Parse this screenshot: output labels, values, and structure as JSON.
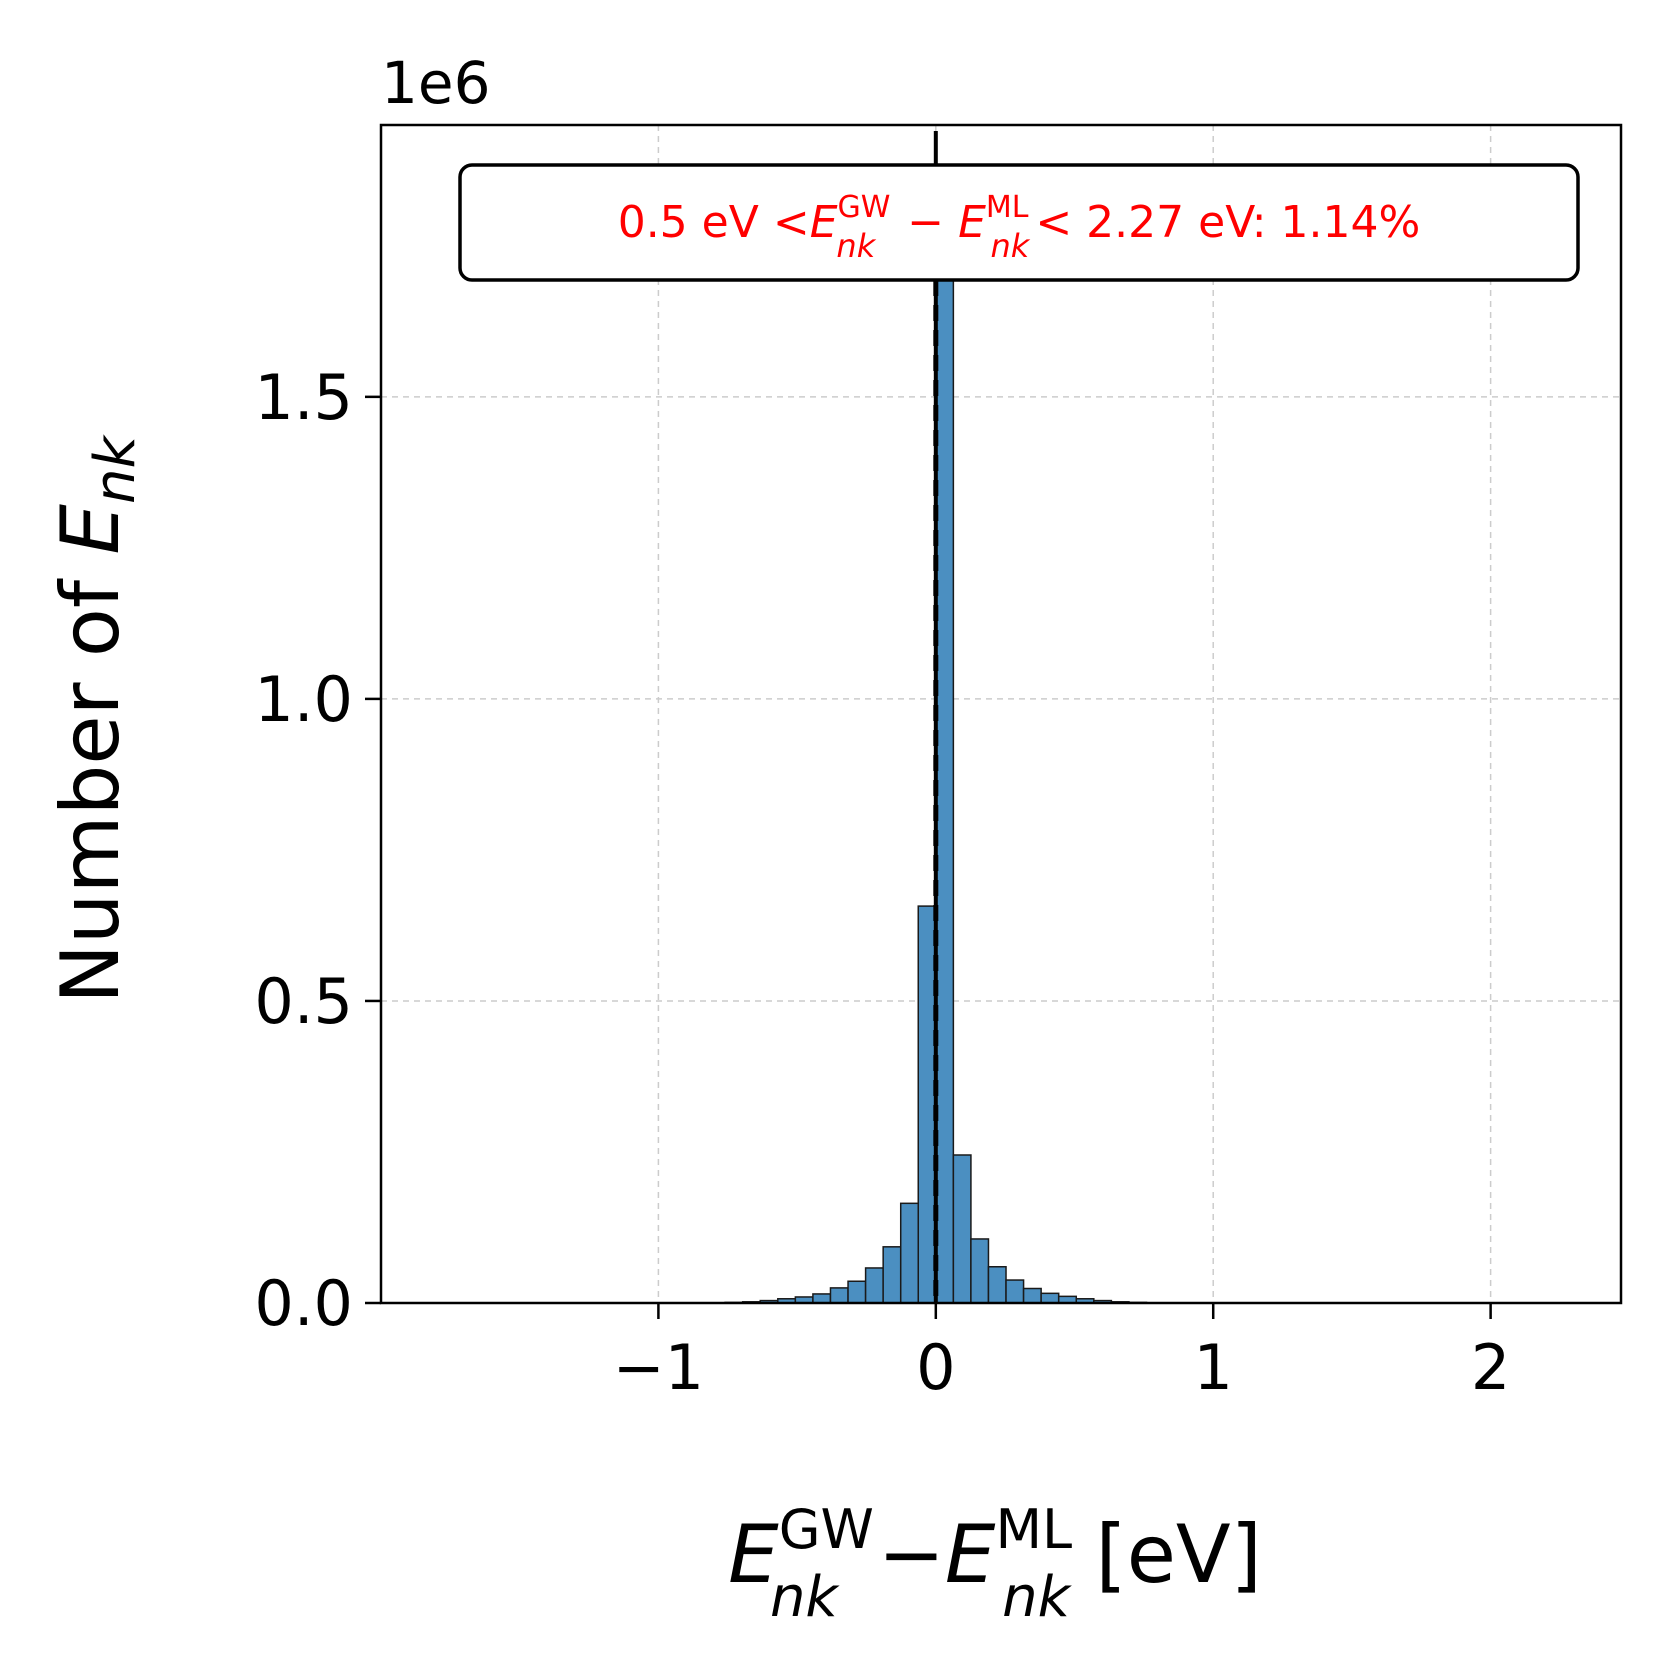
{
  "chart_data": {
    "type": "bar",
    "title": "",
    "xlabel": {
      "base": "E",
      "sub1": "nk",
      "sup1": "GW",
      "minus": "−",
      "sub2": "nk",
      "sup2": "ML",
      "unit": " [eV]"
    },
    "ylabel": {
      "text": "Number of ",
      "base": "E",
      "sub": "nk"
    },
    "xlim": [
      -2.0,
      2.47
    ],
    "ylim": [
      0,
      1950000
    ],
    "offset_text": "1e6",
    "x_ticks": [
      {
        "value": -1,
        "label": "−1"
      },
      {
        "value": 0,
        "label": "0"
      },
      {
        "value": 1,
        "label": "1"
      },
      {
        "value": 2,
        "label": "2"
      }
    ],
    "y_ticks": [
      {
        "value": 0,
        "label": "0.0"
      },
      {
        "value": 500000,
        "label": "0.5"
      },
      {
        "value": 1000000,
        "label": "1.0"
      },
      {
        "value": 1500000,
        "label": "1.5"
      }
    ],
    "grid": true,
    "bin_width": 0.0633,
    "bins": [
      {
        "x": -0.7595,
        "v": 1000
      },
      {
        "x": -0.6962,
        "v": 2000
      },
      {
        "x": -0.6329,
        "v": 4000
      },
      {
        "x": -0.5696,
        "v": 7000
      },
      {
        "x": -0.5063,
        "v": 10000
      },
      {
        "x": -0.443,
        "v": 15000
      },
      {
        "x": -0.3797,
        "v": 25000
      },
      {
        "x": -0.3164,
        "v": 36000
      },
      {
        "x": -0.2531,
        "v": 58000
      },
      {
        "x": -0.1898,
        "v": 93000
      },
      {
        "x": -0.1265,
        "v": 165000
      },
      {
        "x": -0.0633,
        "v": 657000
      },
      {
        "x": 0.0,
        "v": 1870000
      },
      {
        "x": 0.0633,
        "v": 245000
      },
      {
        "x": 0.1265,
        "v": 106000
      },
      {
        "x": 0.1898,
        "v": 60000
      },
      {
        "x": 0.2531,
        "v": 38000
      },
      {
        "x": 0.3164,
        "v": 24000
      },
      {
        "x": 0.3797,
        "v": 16000
      },
      {
        "x": 0.443,
        "v": 11000
      },
      {
        "x": 0.5063,
        "v": 7000
      },
      {
        "x": 0.5696,
        "v": 4000
      },
      {
        "x": 0.6329,
        "v": 2000
      },
      {
        "x": 0.6962,
        "v": 1000
      }
    ],
    "vlines": [
      {
        "x": 0,
        "style": "solid"
      },
      {
        "x": 0,
        "style": "dashed"
      }
    ],
    "bar_color": "#4b8fc1",
    "annotation": {
      "pre": "0.5 eV <",
      "base": "E",
      "sub1": "nk",
      "sup1": "GW",
      "minus": " − ",
      "sub2": "nk",
      "sup2": "ML",
      "post": "< 2.27 eV: 1.14%",
      "color": "#ff0000",
      "position": "top-right"
    }
  }
}
